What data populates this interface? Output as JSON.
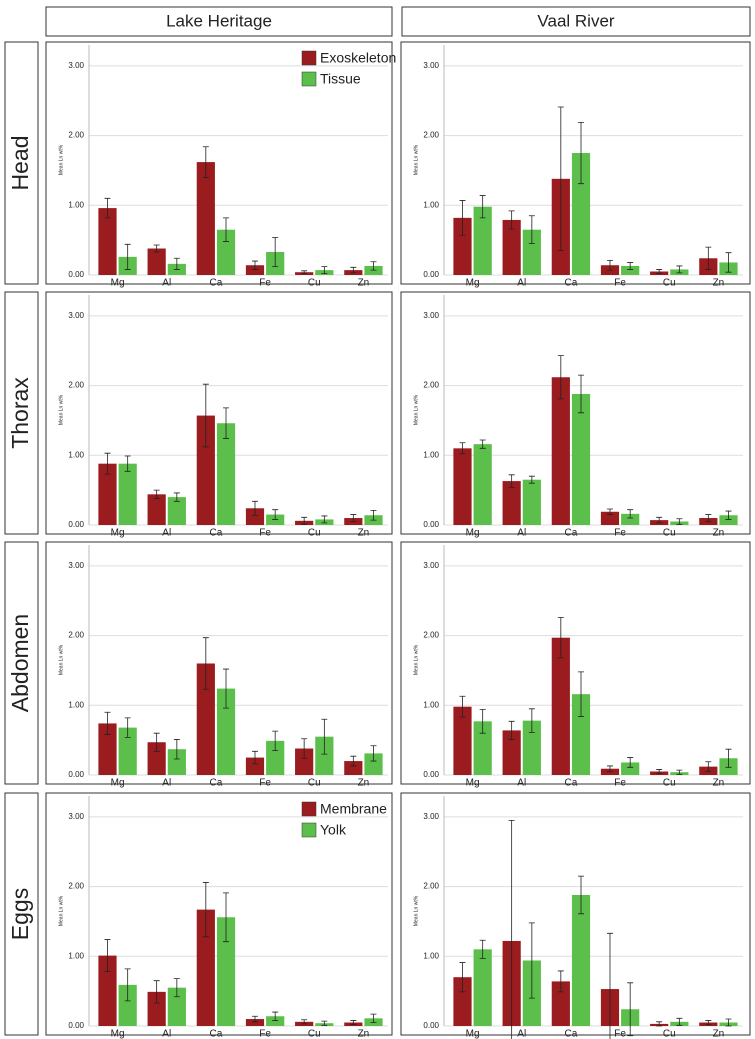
{
  "column_headers": [
    "Lake Heritage",
    "Vaal River"
  ],
  "row_headers": [
    "Head",
    "Thorax",
    "Abdomen",
    "Eggs"
  ],
  "chart_data": [
    {
      "type": "bar",
      "ylabel": "Mean Ln wt%",
      "categories": [
        "Mg",
        "Al",
        "Ca",
        "Fe",
        "Cu",
        "Zn"
      ],
      "ylim": [
        0,
        3.3
      ],
      "yticks": [
        {
          "value": 0,
          "label": "0.00"
        },
        {
          "value": 1,
          "label": "1.00"
        },
        {
          "value": 2,
          "label": "2.00"
        },
        {
          "value": 3,
          "label": "3.00"
        }
      ],
      "grid": true,
      "legend": "upper right",
      "series": [
        {
          "name": "Exoskeleton",
          "color": "#9b1c1f",
          "values": [
            0.96,
            0.38,
            1.62,
            0.14,
            0.04,
            0.07
          ],
          "errors": [
            0.14,
            0.05,
            0.22,
            0.06,
            0.02,
            0.04
          ]
        },
        {
          "name": "Tissue",
          "color": "#5cbf4b",
          "values": [
            0.26,
            0.16,
            0.65,
            0.33,
            0.07,
            0.13
          ],
          "errors": [
            0.18,
            0.08,
            0.17,
            0.21,
            0.05,
            0.06
          ]
        }
      ]
    },
    {
      "type": "bar",
      "ylabel": "Mean Ln wt%",
      "categories": [
        "Mg",
        "Al",
        "Ca",
        "Fe",
        "Cu",
        "Zn"
      ],
      "ylim": [
        0,
        3.3
      ],
      "yticks": [
        {
          "value": 0,
          "label": "0.00"
        },
        {
          "value": 1,
          "label": "1.00"
        },
        {
          "value": 2,
          "label": "2.00"
        },
        {
          "value": 3,
          "label": "3.00"
        }
      ],
      "grid": true,
      "series": [
        {
          "color": "#9b1c1f",
          "values": [
            0.82,
            0.79,
            1.38,
            0.14,
            0.05,
            0.24
          ],
          "errors": [
            0.25,
            0.13,
            1.03,
            0.07,
            0.03,
            0.16
          ]
        },
        {
          "color": "#5cbf4b",
          "values": [
            0.98,
            0.65,
            1.75,
            0.13,
            0.08,
            0.18
          ],
          "errors": [
            0.16,
            0.2,
            0.44,
            0.05,
            0.05,
            0.14
          ]
        }
      ]
    },
    {
      "type": "bar",
      "ylabel": "Mean Ln wt%",
      "categories": [
        "Mg",
        "Al",
        "Ca",
        "Fe",
        "Cu",
        "Zn"
      ],
      "ylim": [
        0,
        3.3
      ],
      "yticks": [
        {
          "value": 0,
          "label": "0.00"
        },
        {
          "value": 1,
          "label": "1.00"
        },
        {
          "value": 2,
          "label": "2.00"
        },
        {
          "value": 3,
          "label": "3.00"
        }
      ],
      "grid": true,
      "series": [
        {
          "color": "#9b1c1f",
          "values": [
            0.88,
            0.44,
            1.57,
            0.24,
            0.06,
            0.1
          ],
          "errors": [
            0.15,
            0.06,
            0.45,
            0.1,
            0.05,
            0.05
          ]
        },
        {
          "color": "#5cbf4b",
          "values": [
            0.88,
            0.4,
            1.46,
            0.15,
            0.08,
            0.14
          ],
          "errors": [
            0.11,
            0.06,
            0.22,
            0.07,
            0.05,
            0.07
          ]
        }
      ]
    },
    {
      "type": "bar",
      "ylabel": "Mean Ln wt%",
      "categories": [
        "Mg",
        "Al",
        "Ca",
        "Fe",
        "Cu",
        "Zn"
      ],
      "ylim": [
        0,
        3.3
      ],
      "yticks": [
        {
          "value": 0,
          "label": "0.00"
        },
        {
          "value": 1,
          "label": "1.00"
        },
        {
          "value": 2,
          "label": "2.00"
        },
        {
          "value": 3,
          "label": "3.00"
        }
      ],
      "grid": true,
      "series": [
        {
          "color": "#9b1c1f",
          "values": [
            1.1,
            0.63,
            2.12,
            0.19,
            0.07,
            0.1
          ],
          "errors": [
            0.08,
            0.09,
            0.31,
            0.04,
            0.04,
            0.05
          ]
        },
        {
          "color": "#5cbf4b",
          "values": [
            1.16,
            0.65,
            1.88,
            0.16,
            0.05,
            0.14
          ],
          "errors": [
            0.06,
            0.05,
            0.27,
            0.06,
            0.04,
            0.06
          ]
        }
      ]
    },
    {
      "type": "bar",
      "ylabel": "Mean Ln wt%",
      "categories": [
        "Mg",
        "Al",
        "Ca",
        "Fe",
        "Cu",
        "Zn"
      ],
      "ylim": [
        0,
        3.3
      ],
      "yticks": [
        {
          "value": 0,
          "label": "0.00"
        },
        {
          "value": 1,
          "label": "1.00"
        },
        {
          "value": 2,
          "label": "2.00"
        },
        {
          "value": 3,
          "label": "3.00"
        }
      ],
      "grid": true,
      "series": [
        {
          "color": "#9b1c1f",
          "values": [
            0.74,
            0.47,
            1.6,
            0.25,
            0.38,
            0.2
          ],
          "errors": [
            0.16,
            0.13,
            0.37,
            0.09,
            0.14,
            0.07
          ]
        },
        {
          "color": "#5cbf4b",
          "values": [
            0.68,
            0.37,
            1.24,
            0.49,
            0.55,
            0.31
          ],
          "errors": [
            0.14,
            0.14,
            0.28,
            0.14,
            0.25,
            0.11
          ]
        }
      ]
    },
    {
      "type": "bar",
      "ylabel": "Mean Ln wt%",
      "categories": [
        "Mg",
        "Al",
        "Ca",
        "Fe",
        "Cu",
        "Zn"
      ],
      "ylim": [
        0,
        3.3
      ],
      "yticks": [
        {
          "value": 0,
          "label": "0.00"
        },
        {
          "value": 1,
          "label": "1.00"
        },
        {
          "value": 2,
          "label": "2.00"
        },
        {
          "value": 3,
          "label": "3.00"
        }
      ],
      "grid": true,
      "series": [
        {
          "color": "#9b1c1f",
          "values": [
            0.98,
            0.64,
            1.97,
            0.09,
            0.05,
            0.12
          ],
          "errors": [
            0.15,
            0.13,
            0.29,
            0.04,
            0.03,
            0.07
          ]
        },
        {
          "color": "#5cbf4b",
          "values": [
            0.77,
            0.78,
            1.16,
            0.18,
            0.04,
            0.24
          ],
          "errors": [
            0.17,
            0.17,
            0.32,
            0.07,
            0.03,
            0.13
          ]
        }
      ]
    },
    {
      "type": "bar",
      "ylabel": "Mean Ln wt%",
      "categories": [
        "Mg",
        "Al",
        "Ca",
        "Fe",
        "Cu",
        "Zn"
      ],
      "ylim": [
        0,
        3.3
      ],
      "yticks": [
        {
          "value": 0,
          "label": "0.00"
        },
        {
          "value": 1,
          "label": "1.00"
        },
        {
          "value": 2,
          "label": "2.00"
        },
        {
          "value": 3,
          "label": "3.00"
        }
      ],
      "grid": true,
      "legend": "upper right",
      "series": [
        {
          "name": "Membrane",
          "color": "#9b1c1f",
          "values": [
            1.01,
            0.49,
            1.67,
            0.1,
            0.06,
            0.05
          ],
          "errors": [
            0.23,
            0.16,
            0.39,
            0.04,
            0.03,
            0.03
          ]
        },
        {
          "name": "Yolk",
          "color": "#5cbf4b",
          "values": [
            0.59,
            0.55,
            1.56,
            0.14,
            0.04,
            0.11
          ],
          "errors": [
            0.23,
            0.13,
            0.35,
            0.06,
            0.03,
            0.06
          ]
        }
      ]
    },
    {
      "type": "bar",
      "ylabel": "Mean Ln wt%",
      "categories": [
        "Mg",
        "Al",
        "Ca",
        "Fe",
        "Cu",
        "Zn"
      ],
      "ylim": [
        0,
        3.3
      ],
      "yticks": [
        {
          "value": 0,
          "label": "0.00"
        },
        {
          "value": 1,
          "label": "1.00"
        },
        {
          "value": 2,
          "label": "2.00"
        },
        {
          "value": 3,
          "label": "3.00"
        }
      ],
      "grid": true,
      "series": [
        {
          "color": "#9b1c1f",
          "values": [
            0.7,
            1.22,
            0.64,
            0.53,
            0.03,
            0.05
          ],
          "errors": [
            0.21,
            1.73,
            0.15,
            0.8,
            0.03,
            0.03
          ]
        },
        {
          "color": "#5cbf4b",
          "values": [
            1.1,
            0.94,
            1.88,
            0.24,
            0.06,
            0.05
          ],
          "errors": [
            0.13,
            0.54,
            0.27,
            0.38,
            0.05,
            0.05
          ]
        }
      ]
    }
  ]
}
